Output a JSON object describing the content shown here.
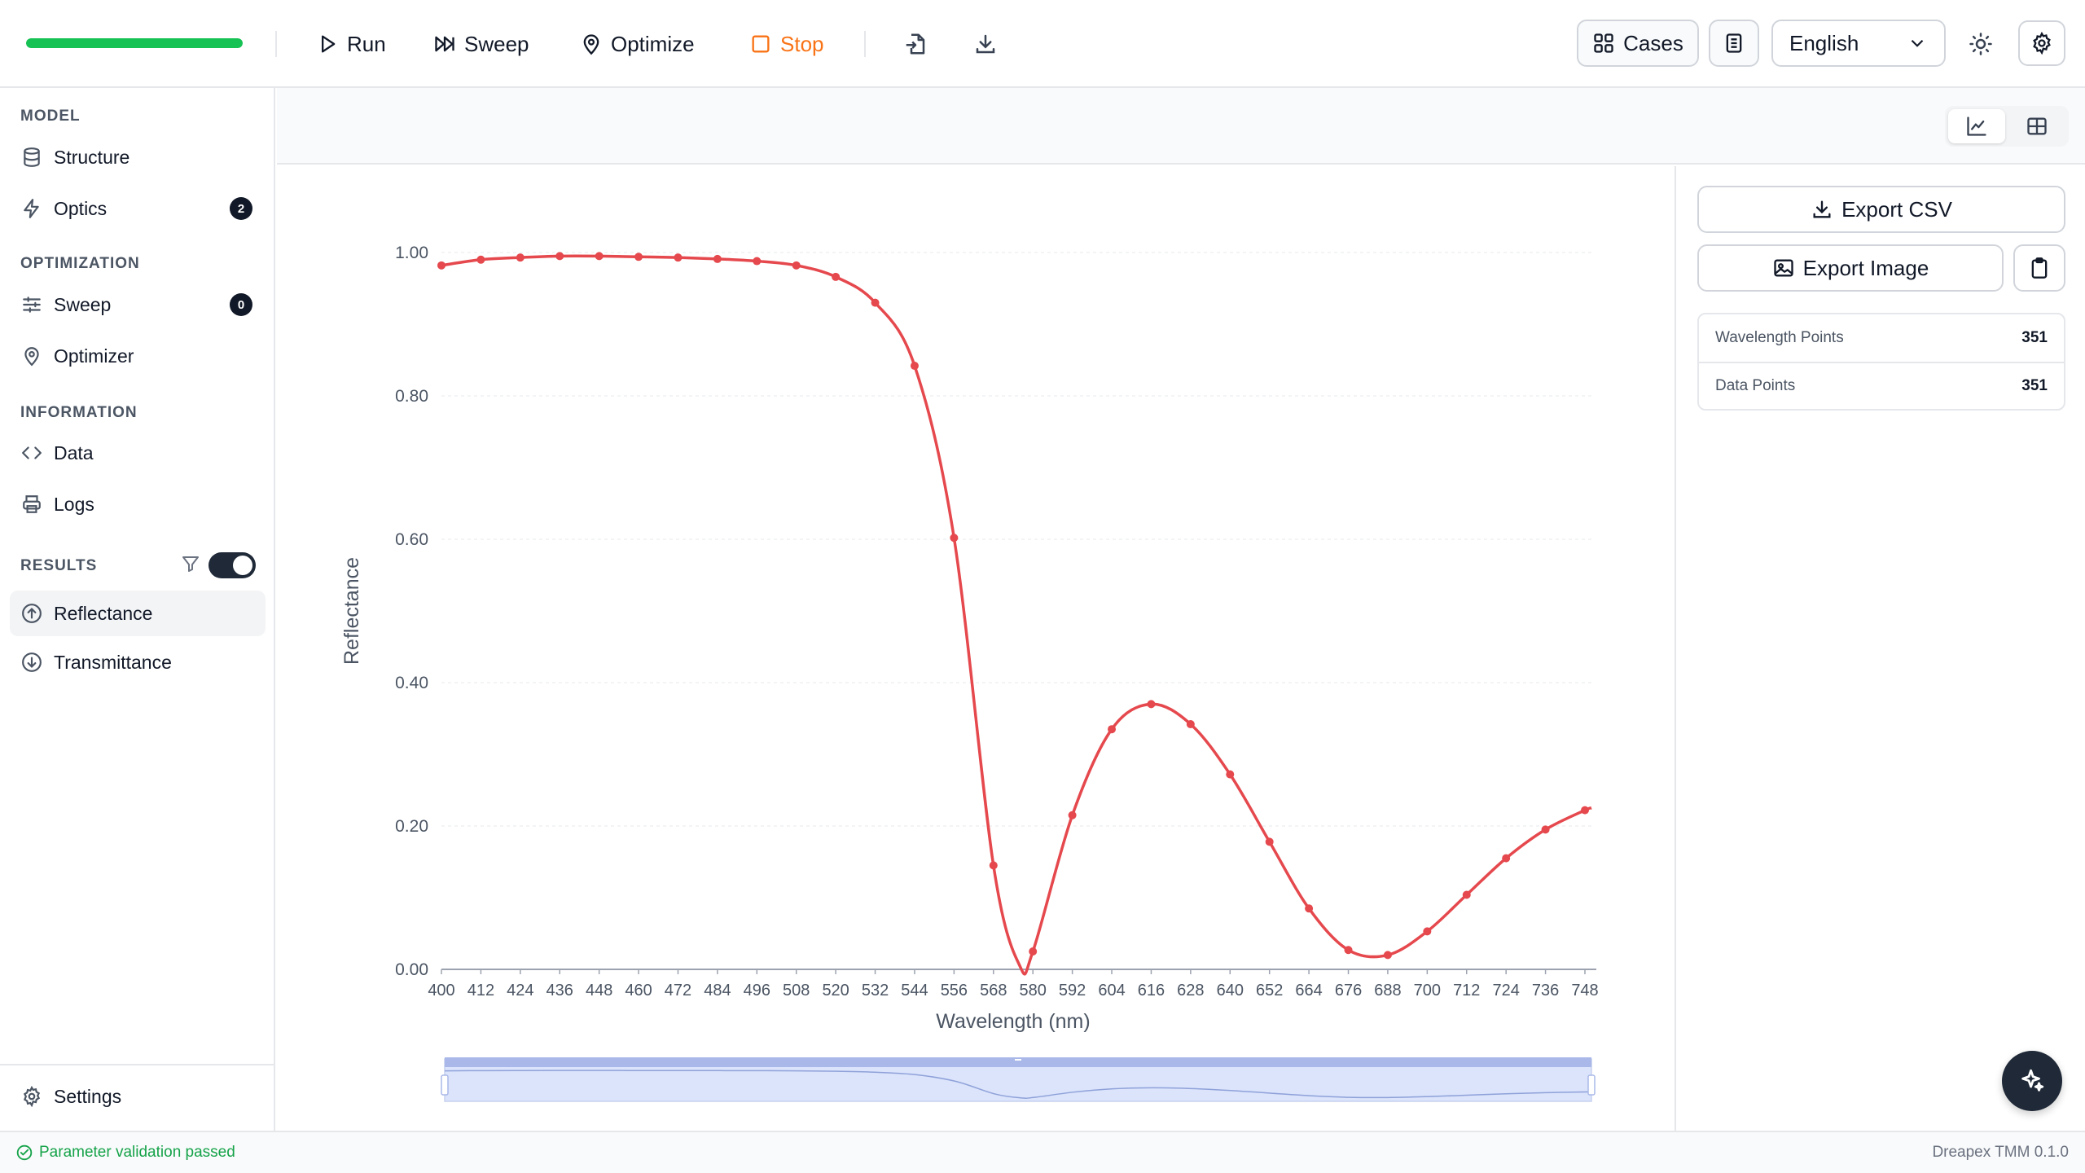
{
  "toolbar": {
    "progress": 1.0,
    "run_label": "Run",
    "sweep_label": "Sweep",
    "optimize_label": "Optimize",
    "stop_label": "Stop",
    "cases_label": "Cases",
    "language": "English"
  },
  "sidebar": {
    "model_title": "MODEL",
    "structure_label": "Structure",
    "optics_label": "Optics",
    "optics_count": "2",
    "optimization_title": "OPTIMIZATION",
    "sweep_label": "Sweep",
    "sweep_count": "0",
    "optimizer_label": "Optimizer",
    "information_title": "INFORMATION",
    "data_label": "Data",
    "logs_label": "Logs",
    "results_title": "RESULTS",
    "reflectance_label": "Reflectance",
    "transmittance_label": "Transmittance",
    "settings_label": "Settings"
  },
  "right_panel": {
    "export_csv_label": "Export CSV",
    "export_image_label": "Export Image",
    "wavelength_points_label": "Wavelength Points",
    "wavelength_points_value": "351",
    "data_points_label": "Data Points",
    "data_points_value": "351"
  },
  "status": {
    "message": "Parameter validation passed",
    "version": "Dreapex TMM 0.1.0"
  },
  "colors": {
    "accent_line": "#e5484d",
    "progress": "#16c254",
    "stop": "#f97316"
  },
  "chart_data": {
    "type": "line",
    "xlabel": "Wavelength (nm)",
    "ylabel": "Reflectance",
    "xlim": [
      400,
      750
    ],
    "ylim": [
      0,
      1.0
    ],
    "yticks": [
      "0.00",
      "0.20",
      "0.40",
      "0.60",
      "0.80",
      "1.00"
    ],
    "xticks": [
      "400",
      "412",
      "424",
      "436",
      "448",
      "460",
      "472",
      "484",
      "496",
      "508",
      "520",
      "532",
      "544",
      "556",
      "568",
      "580",
      "592",
      "604",
      "616",
      "628",
      "640",
      "652",
      "664",
      "676",
      "688",
      "700",
      "712",
      "724",
      "736",
      "748"
    ],
    "series": [
      {
        "x": [
          400,
          412,
          424,
          436,
          448,
          460,
          472,
          484,
          496,
          508,
          520,
          532,
          544,
          556,
          568,
          576,
          580,
          592,
          604,
          616,
          628,
          640,
          652,
          664,
          676,
          688,
          700,
          712,
          724,
          736,
          748,
          750
        ],
        "y": [
          0.982,
          0.99,
          0.993,
          0.995,
          0.995,
          0.994,
          0.993,
          0.991,
          0.988,
          0.982,
          0.966,
          0.93,
          0.842,
          0.602,
          0.145,
          0.005,
          0.025,
          0.215,
          0.335,
          0.37,
          0.342,
          0.272,
          0.178,
          0.085,
          0.027,
          0.02,
          0.053,
          0.104,
          0.155,
          0.195,
          0.222,
          0.225
        ]
      }
    ]
  }
}
